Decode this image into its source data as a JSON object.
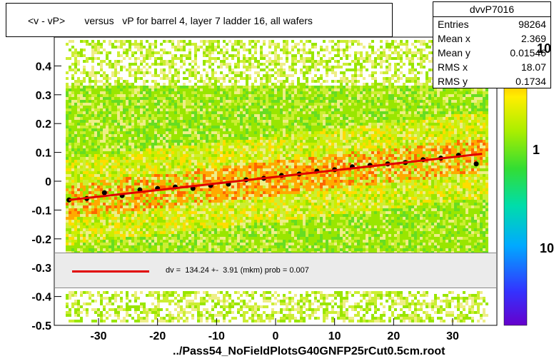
{
  "title": "<v - vP>       versus   vP for barrel 4, layer 7 ladder 16, all wafers",
  "stats": {
    "name": "dvvP7016",
    "rows": [
      {
        "key": "Entries",
        "value": "98264"
      },
      {
        "key": "Mean x",
        "value": "2.369"
      },
      {
        "key": "Mean y",
        "value": "0.01546"
      },
      {
        "key": "RMS x",
        "value": "18.07"
      },
      {
        "key": "RMS y",
        "value": "0.1734"
      }
    ]
  },
  "fit_legend": "dv =  134.24 +-  3.91 (mkm) prob = 0.007",
  "footer": "../Pass54_NoFieldPlotsG40GNFP25rCut0.5cm.root",
  "palette": {
    "labels": [
      "10",
      "1",
      "10"
    ]
  },
  "colors": {
    "fit": "#e00000",
    "profile": "#000000",
    "accent": "#ff4400"
  },
  "chart_data": {
    "type": "heatmap",
    "xlim": [
      -37.5,
      37.5
    ],
    "ylim": [
      -0.5,
      0.5
    ],
    "x_ticks": [
      -30,
      -20,
      -10,
      0,
      10,
      20,
      30
    ],
    "y_ticks": [
      -0.5,
      -0.4,
      -0.3,
      -0.2,
      -0.1,
      0,
      0.1,
      0.2,
      0.3,
      0.4
    ],
    "y_tick_labels": [
      "-0.5",
      "-0.4",
      "-0.3",
      "-0.2",
      "-0.1",
      "0",
      "0.1",
      "0.2",
      "0.3",
      "0.4"
    ],
    "x_tick_labels": [
      "-30",
      "-20",
      "-10",
      "0",
      "10",
      "20",
      "30"
    ],
    "fit_line": {
      "x": [
        -35,
        35
      ],
      "y": [
        -0.065,
        0.095
      ]
    },
    "profile": {
      "x": [
        -35,
        -32,
        -29,
        -26,
        -23,
        -20,
        -17,
        -14,
        -11,
        -8,
        -5,
        -2,
        1,
        4,
        7,
        10,
        13,
        16,
        19,
        22,
        25,
        28,
        31,
        34
      ],
      "y": [
        -0.065,
        -0.06,
        -0.04,
        -0.05,
        -0.03,
        -0.025,
        -0.02,
        -0.025,
        -0.015,
        -0.01,
        0.005,
        0.01,
        0.02,
        0.025,
        0.035,
        0.04,
        0.05,
        0.055,
        0.06,
        0.065,
        0.075,
        0.08,
        0.09,
        0.06
      ]
    }
  }
}
